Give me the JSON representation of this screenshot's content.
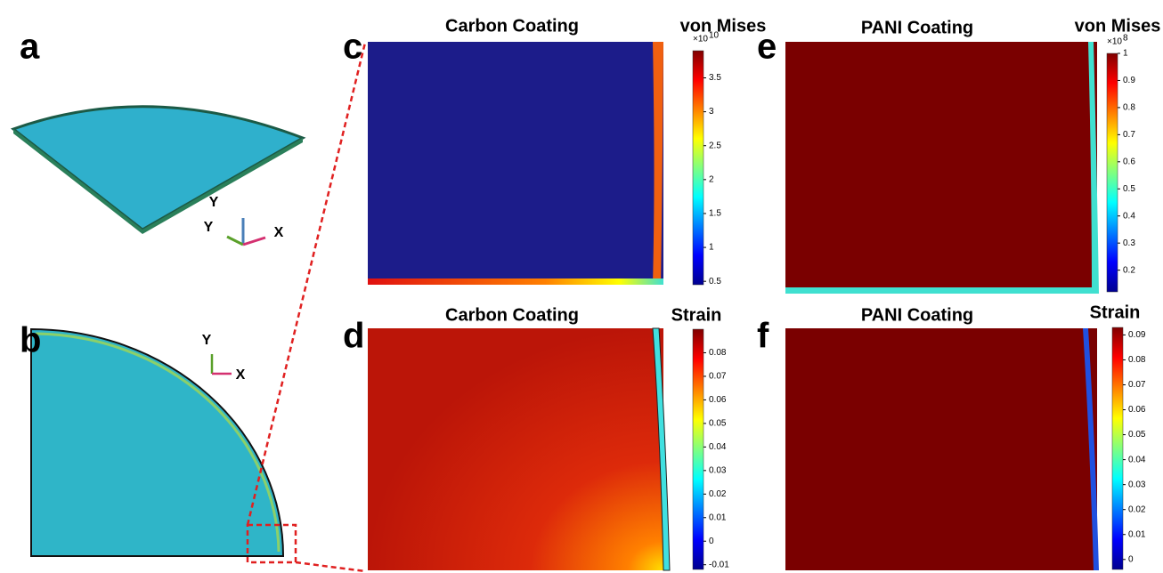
{
  "panels": [
    {
      "label": "a",
      "axes": [
        "Y",
        "Y",
        "X"
      ]
    },
    {
      "label": "b",
      "axes": [
        "Y",
        "X"
      ]
    },
    {
      "label": "c",
      "title": "Carbon Coating",
      "colorbar": {
        "title": "von Mises",
        "multiplier": "×10",
        "exponent": "10",
        "lim": [
          0.45,
          3.9
        ],
        "ticks": [
          0.5,
          1,
          1.5,
          2,
          2.5,
          3,
          3.5
        ]
      }
    },
    {
      "label": "d",
      "title": "Carbon Coating",
      "colorbar": {
        "title": "Strain",
        "lim": [
          -0.012,
          0.09
        ],
        "ticks": [
          -0.01,
          0,
          0.01,
          0.02,
          0.03,
          0.04,
          0.05,
          0.06,
          0.07,
          0.08
        ]
      }
    },
    {
      "label": "e",
      "title": "PANI Coating",
      "colorbar": {
        "title": "von Mises",
        "multiplier": "×10",
        "exponent": "8",
        "lim": [
          0.12,
          1.0
        ],
        "ticks": [
          0.2,
          0.3,
          0.4,
          0.5,
          0.6,
          0.7,
          0.8,
          0.9,
          1
        ]
      }
    },
    {
      "label": "f",
      "title": "PANI Coating",
      "colorbar": {
        "title": "Strain",
        "lim": [
          -0.004,
          0.093
        ],
        "ticks": [
          0,
          0.01,
          0.02,
          0.03,
          0.04,
          0.05,
          0.06,
          0.07,
          0.08,
          0.09
        ]
      }
    }
  ]
}
